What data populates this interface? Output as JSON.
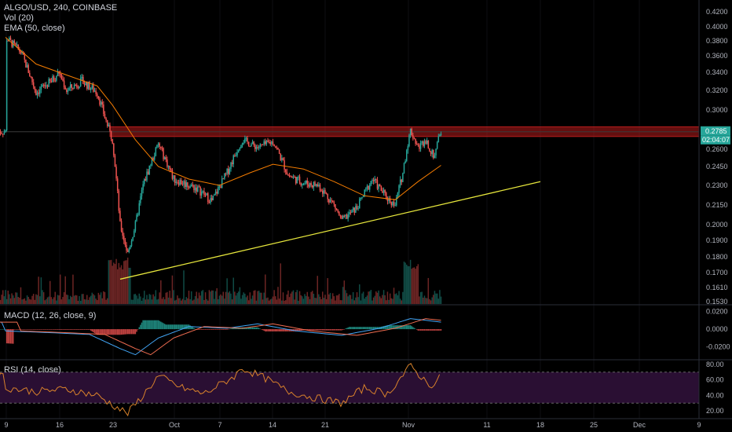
{
  "header": {
    "symbol_line": "ALGO/USD, 240, COINBASE",
    "vol_label": "Vol (20)",
    "ema_label": "EMA (50, close)"
  },
  "macd": {
    "label": "MACD (12, 26, close, 9)"
  },
  "rsi": {
    "label": "RSI (14, close)"
  },
  "colors": {
    "up": "#26a69a",
    "down": "#ef5350",
    "ema": "#f57c00",
    "trendline": "#e6e63c",
    "resistance": "#b71c1c",
    "rsi_line": "#d9822b",
    "rsi_band": "#2a0f33",
    "macd_line": "#42a5f5",
    "signal_line": "#ef6c50",
    "last_price_tag": "#26a69a"
  },
  "chart_data": {
    "type": "candlestick",
    "price_axis": {
      "range": [
        0.1515,
        0.425
      ],
      "ticks": [
        "0.4200",
        "0.4000",
        "0.3800",
        "0.3600",
        "0.3400",
        "0.3200",
        "0.3000",
        "0.2800",
        "0.2600",
        "0.2450",
        "0.2300",
        "0.2150",
        "0.2000",
        "0.1900",
        "0.1800",
        "0.1700",
        "0.1610",
        "0.1530"
      ]
    },
    "time_axis": {
      "ticks": [
        "9",
        "16",
        "23",
        "Oct",
        "7",
        "14",
        "21",
        "Nov",
        "11",
        "18",
        "25",
        "Dec",
        "9"
      ]
    },
    "last_price": "0.2785",
    "countdown": "02:04:07",
    "macd_axis": {
      "ticks": [
        "0.0200",
        "0.0000",
        "-0.0200"
      ],
      "range": [
        -0.032,
        0.025
      ]
    },
    "rsi_axis": {
      "ticks": [
        "80.00",
        "60.00",
        "40.00",
        "20.00"
      ],
      "range": [
        10,
        85
      ],
      "bands": [
        30,
        70
      ]
    },
    "resistance_zone": [
      0.2735,
      0.2835
    ],
    "trendline": {
      "start": {
        "date": "Sep 24",
        "price": 0.166
      },
      "end": {
        "date": "Nov 18",
        "price": 0.233
      }
    },
    "price_path": [
      {
        "date": "Sep 9",
        "price": 0.385
      },
      {
        "date": "Sep 11",
        "price": 0.365
      },
      {
        "date": "Sep 13",
        "price": 0.318
      },
      {
        "date": "Sep 15",
        "price": 0.33
      },
      {
        "date": "Sep 16",
        "price": 0.34
      },
      {
        "date": "Sep 17",
        "price": 0.32
      },
      {
        "date": "Sep 19",
        "price": 0.33
      },
      {
        "date": "Sep 21",
        "price": 0.318
      },
      {
        "date": "Sep 22",
        "price": 0.293
      },
      {
        "date": "Sep 23",
        "price": 0.27
      },
      {
        "date": "Sep 24",
        "price": 0.2
      },
      {
        "date": "Sep 25",
        "price": 0.182
      },
      {
        "date": "Sep 26",
        "price": 0.2
      },
      {
        "date": "Sep 27",
        "price": 0.23
      },
      {
        "date": "Sep 29",
        "price": 0.265
      },
      {
        "date": "Oct 1",
        "price": 0.235
      },
      {
        "date": "Oct 4",
        "price": 0.228
      },
      {
        "date": "Oct 6",
        "price": 0.218
      },
      {
        "date": "Oct 8",
        "price": 0.24
      },
      {
        "date": "Oct 10",
        "price": 0.27
      },
      {
        "date": "Oct 12",
        "price": 0.262
      },
      {
        "date": "Oct 14",
        "price": 0.268
      },
      {
        "date": "Oct 16",
        "price": 0.238
      },
      {
        "date": "Oct 18",
        "price": 0.232
      },
      {
        "date": "Oct 20",
        "price": 0.23
      },
      {
        "date": "Oct 22",
        "price": 0.215
      },
      {
        "date": "Oct 23",
        "price": 0.203
      },
      {
        "date": "Oct 25",
        "price": 0.213
      },
      {
        "date": "Oct 27",
        "price": 0.235
      },
      {
        "date": "Oct 29",
        "price": 0.22
      },
      {
        "date": "Oct 30",
        "price": 0.215
      },
      {
        "date": "Oct 31",
        "price": 0.24
      },
      {
        "date": "Nov 1",
        "price": 0.28
      },
      {
        "date": "Nov 2",
        "price": 0.262
      },
      {
        "date": "Nov 3",
        "price": 0.27
      },
      {
        "date": "Nov 4",
        "price": 0.253
      },
      {
        "date": "Nov 5",
        "price": 0.2785
      }
    ],
    "ema_path": [
      {
        "date": "Sep 9",
        "value": 0.385
      },
      {
        "date": "Sep 13",
        "value": 0.35
      },
      {
        "date": "Sep 17",
        "value": 0.337
      },
      {
        "date": "Sep 21",
        "value": 0.325
      },
      {
        "date": "Sep 23",
        "value": 0.305
      },
      {
        "date": "Sep 26",
        "value": 0.27
      },
      {
        "date": "Sep 29",
        "value": 0.245
      },
      {
        "date": "Oct 3",
        "value": 0.235
      },
      {
        "date": "Oct 7",
        "value": 0.23
      },
      {
        "date": "Oct 11",
        "value": 0.24
      },
      {
        "date": "Oct 14",
        "value": 0.247
      },
      {
        "date": "Oct 18",
        "value": 0.243
      },
      {
        "date": "Oct 22",
        "value": 0.233
      },
      {
        "date": "Oct 26",
        "value": 0.222
      },
      {
        "date": "Oct 30",
        "value": 0.219
      },
      {
        "date": "Nov 2",
        "value": 0.233
      },
      {
        "date": "Nov 5",
        "value": 0.246
      }
    ],
    "rsi_path": [
      {
        "date": "Sep 9",
        "value": 50
      },
      {
        "date": "Sep 13",
        "value": 45
      },
      {
        "date": "Sep 17",
        "value": 48
      },
      {
        "date": "Sep 21",
        "value": 40
      },
      {
        "date": "Sep 24",
        "value": 22
      },
      {
        "date": "Sep 25",
        "value": 17
      },
      {
        "date": "Sep 27",
        "value": 40
      },
      {
        "date": "Sep 29",
        "value": 65
      },
      {
        "date": "Oct 2",
        "value": 50
      },
      {
        "date": "Oct 5",
        "value": 42
      },
      {
        "date": "Oct 9",
        "value": 65
      },
      {
        "date": "Oct 10",
        "value": 75
      },
      {
        "date": "Oct 13",
        "value": 62
      },
      {
        "date": "Oct 16",
        "value": 45
      },
      {
        "date": "Oct 19",
        "value": 38
      },
      {
        "date": "Oct 23",
        "value": 30
      },
      {
        "date": "Oct 26",
        "value": 50
      },
      {
        "date": "Oct 29",
        "value": 42
      },
      {
        "date": "Nov 1",
        "value": 78
      },
      {
        "date": "Nov 3",
        "value": 58
      },
      {
        "date": "Nov 4",
        "value": 52
      },
      {
        "date": "Nov 5",
        "value": 65
      }
    ],
    "macd_path": [
      {
        "date": "Sep 9",
        "value": -0.002
      },
      {
        "date": "Sep 15",
        "value": -0.004
      },
      {
        "date": "Sep 20",
        "value": -0.006
      },
      {
        "date": "Sep 24",
        "value": -0.022
      },
      {
        "date": "Sep 26",
        "value": -0.029
      },
      {
        "date": "Sep 29",
        "value": -0.01
      },
      {
        "date": "Oct 3",
        "value": 0.003
      },
      {
        "date": "Oct 8",
        "value": 0.001
      },
      {
        "date": "Oct 12",
        "value": 0.006
      },
      {
        "date": "Oct 17",
        "value": -0.002
      },
      {
        "date": "Oct 23",
        "value": -0.007
      },
      {
        "date": "Oct 28",
        "value": 0.001
      },
      {
        "date": "Nov 1",
        "value": 0.012
      },
      {
        "date": "Nov 3",
        "value": 0.01
      },
      {
        "date": "Nov 5",
        "value": 0.008
      }
    ]
  }
}
